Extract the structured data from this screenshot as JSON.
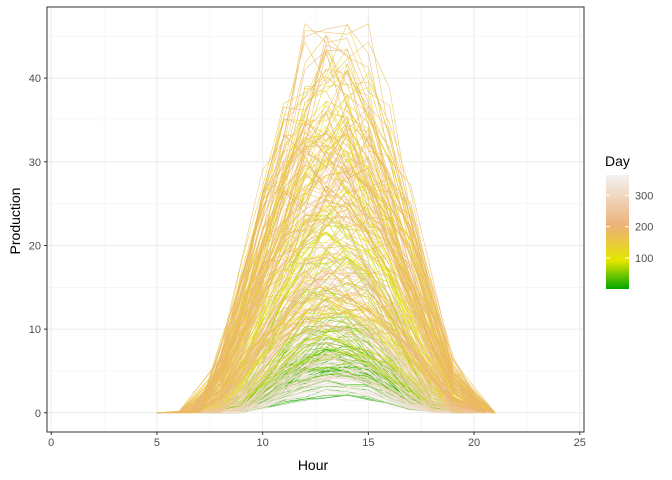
{
  "chart_data": {
    "type": "line",
    "xlabel": "Hour",
    "ylabel": "Production",
    "xlim": [
      -0.2,
      25.2
    ],
    "ylim": [
      -2.3,
      48.5
    ],
    "x_ticks": [
      0,
      5,
      10,
      15,
      20,
      25
    ],
    "y_ticks": [
      0,
      10,
      20,
      30,
      40
    ],
    "grid": true,
    "legend": {
      "title": "Day",
      "position": "right",
      "type": "colorbar",
      "range": [
        1,
        365
      ],
      "breaks": [
        100,
        200,
        300
      ],
      "colors": [
        "#00a600",
        "#e6e600",
        "#ecb176",
        "#f2f2f2"
      ]
    },
    "series_description": "One line per day (1-365) of hourly production; series are unlabeled and colored by day.",
    "envelope": {
      "x": [
        5.5,
        6,
        7,
        8,
        9,
        10,
        11,
        12,
        13,
        14,
        15,
        16,
        17,
        18,
        19,
        20,
        21,
        21.5
      ],
      "max_y": [
        0,
        0.2,
        3,
        12,
        22,
        32,
        40,
        45,
        46.5,
        45,
        41,
        33,
        24,
        14,
        6,
        1.5,
        0.2,
        0
      ],
      "min_y": [
        0,
        0,
        0,
        0,
        0,
        0.5,
        1.5,
        2.5,
        3,
        2.5,
        1.5,
        0.5,
        0,
        0,
        0,
        0,
        0,
        0
      ]
    }
  }
}
